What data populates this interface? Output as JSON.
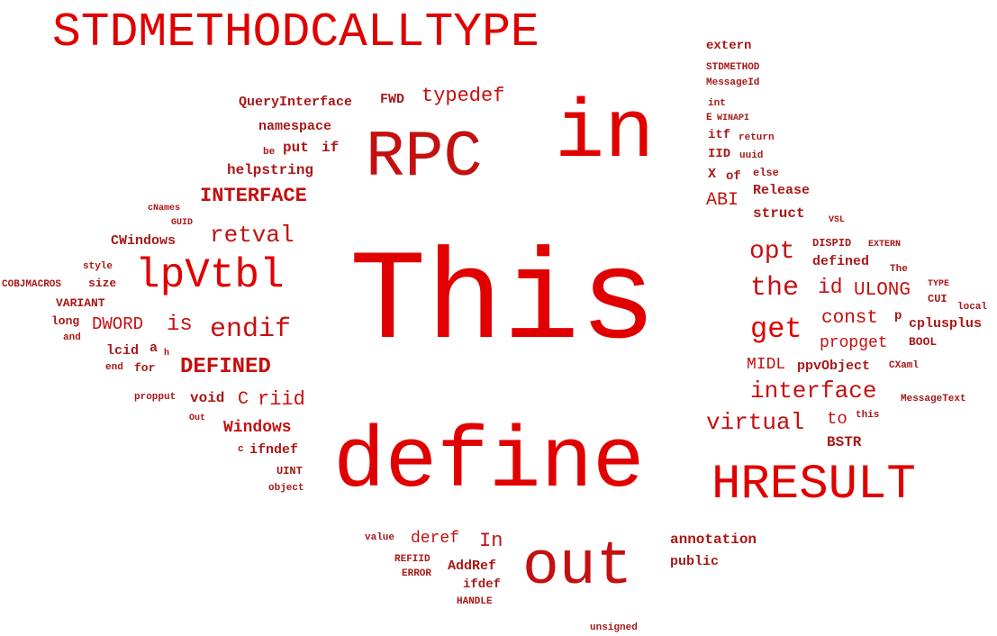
{
  "colors": {
    "background": "#ffffff",
    "bright_red": "#e00000",
    "red": "#c41010",
    "dark_red": "#a81818"
  },
  "words": [
    "STDMETHODCALLTYPE",
    "extern",
    "STDMETHOD",
    "MessageId",
    "int",
    "E",
    "WINAPI",
    "itf",
    "return",
    "IID",
    "uuid",
    "X",
    "of",
    "else",
    "ABI",
    "Release",
    "struct",
    "VSL",
    "QueryInterface",
    "FWD",
    "typedef",
    "namespace",
    "be",
    "put",
    "if",
    "helpstring",
    "in",
    "RPC",
    "INTERFACE",
    "cNames",
    "GUID",
    "CWindows",
    "retval",
    "style",
    "COBJMACROS",
    "size",
    "VARIANT",
    "lpVtbl",
    "long",
    "and",
    "DWORD",
    "is",
    "endif",
    "lcid",
    "a",
    "h",
    "end",
    "for",
    "DEFINED",
    "This",
    "opt",
    "DISPID",
    "EXTERN",
    "defined",
    "The",
    "the",
    "id",
    "ULONG",
    "TYPE",
    "CUI",
    "local",
    "const",
    "p",
    "cplusplus",
    "get",
    "propget",
    "BOOL",
    "MIDL",
    "ppvObject",
    "CXaml",
    "interface",
    "MessageText",
    "virtual",
    "to",
    "this",
    "BSTR",
    "propput",
    "void",
    "C",
    "riid",
    "Out",
    "Windows",
    "c",
    "ifndef",
    "UINT",
    "object",
    "define",
    "HRESULT",
    "value",
    "deref",
    "In",
    "annotation",
    "REFIID",
    "ERROR",
    "AddRef",
    "ifdef",
    "out",
    "public",
    "HANDLE",
    "unsigned"
  ]
}
